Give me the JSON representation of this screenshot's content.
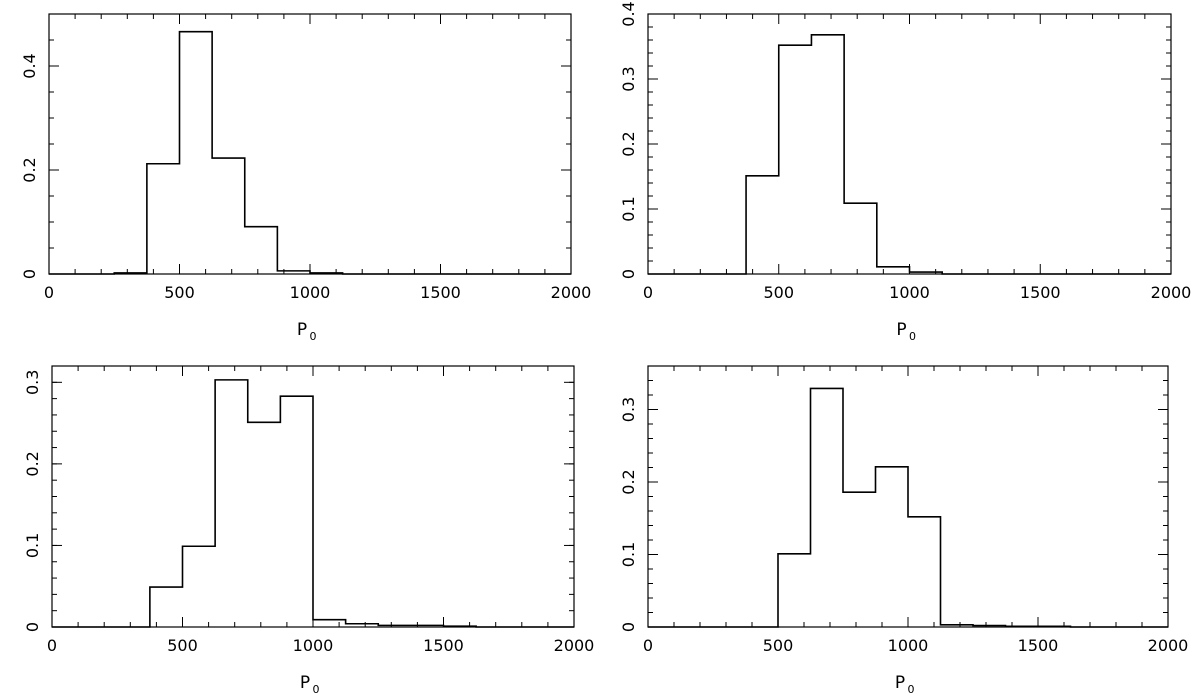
{
  "chart_data": [
    {
      "type": "bar",
      "xlabel": "P",
      "xlabel_subscript": "0",
      "ylabel": "",
      "xlim": [
        0,
        2000
      ],
      "ylim": [
        0,
        0.5
      ],
      "xticks": [
        "0",
        "500",
        "1000",
        "1500",
        "2000"
      ],
      "yticks": [
        {
          "value": 0,
          "label": "0"
        },
        {
          "value": 0.2,
          "label": "0.2"
        },
        {
          "value": 0.4,
          "label": "0.4"
        }
      ],
      "bin_edges": [
        0,
        125,
        250,
        375,
        500,
        625,
        750,
        875,
        1000,
        1125,
        1250,
        1375,
        1500,
        1625,
        1750,
        1875,
        2000
      ],
      "values": [
        0,
        0,
        0.002,
        0.212,
        0.466,
        0.223,
        0.091,
        0.006,
        0.002,
        0,
        0,
        0,
        0,
        0,
        0,
        0
      ]
    },
    {
      "type": "bar",
      "xlabel": "P",
      "xlabel_subscript": "0",
      "ylabel": "",
      "xlim": [
        0,
        2000
      ],
      "ylim": [
        0,
        0.4
      ],
      "xticks": [
        "0",
        "500",
        "1000",
        "1500",
        "2000"
      ],
      "yticks": [
        {
          "value": 0,
          "label": "0"
        },
        {
          "value": 0.1,
          "label": "0.1"
        },
        {
          "value": 0.2,
          "label": "0.2"
        },
        {
          "value": 0.3,
          "label": "0.3"
        },
        {
          "value": 0.4,
          "label": "0.4"
        }
      ],
      "bin_edges": [
        0,
        125,
        250,
        375,
        500,
        625,
        750,
        875,
        1000,
        1125,
        1250,
        1375,
        1500,
        1625,
        1750,
        1875,
        2000
      ],
      "values": [
        0,
        0,
        0,
        0.151,
        0.352,
        0.368,
        0.109,
        0.011,
        0.003,
        0,
        0,
        0,
        0,
        0,
        0,
        0
      ]
    },
    {
      "type": "bar",
      "xlabel": "P",
      "xlabel_subscript": "0",
      "ylabel": "",
      "xlim": [
        0,
        2000
      ],
      "ylim": [
        0,
        0.32
      ],
      "xticks": [
        "0",
        "500",
        "1000",
        "1500",
        "2000"
      ],
      "yticks": [
        {
          "value": 0,
          "label": "0"
        },
        {
          "value": 0.1,
          "label": "0.1"
        },
        {
          "value": 0.2,
          "label": "0.2"
        },
        {
          "value": 0.3,
          "label": "0.3"
        }
      ],
      "bin_edges": [
        0,
        125,
        250,
        375,
        500,
        625,
        750,
        875,
        1000,
        1125,
        1250,
        1375,
        1500,
        1625,
        1750,
        1875,
        2000
      ],
      "values": [
        0,
        0,
        0,
        0.049,
        0.099,
        0.303,
        0.251,
        0.283,
        0.009,
        0.004,
        0.002,
        0.002,
        0.001,
        0,
        0,
        0
      ]
    },
    {
      "type": "bar",
      "xlabel": "P",
      "xlabel_subscript": "0",
      "ylabel": "",
      "xlim": [
        0,
        2000
      ],
      "ylim": [
        0,
        0.36
      ],
      "xticks": [
        "0",
        "500",
        "1000",
        "1500",
        "2000"
      ],
      "yticks": [
        {
          "value": 0,
          "label": "0"
        },
        {
          "value": 0.1,
          "label": "0.1"
        },
        {
          "value": 0.2,
          "label": "0.2"
        },
        {
          "value": 0.3,
          "label": "0.3"
        }
      ],
      "bin_edges": [
        0,
        125,
        250,
        375,
        500,
        625,
        750,
        875,
        1000,
        1125,
        1250,
        1375,
        1500,
        1625,
        1750,
        1875,
        2000
      ],
      "values": [
        0,
        0,
        0,
        0,
        0.101,
        0.329,
        0.186,
        0.221,
        0.152,
        0.003,
        0.002,
        0.001,
        0.001,
        0,
        0,
        0
      ]
    }
  ]
}
